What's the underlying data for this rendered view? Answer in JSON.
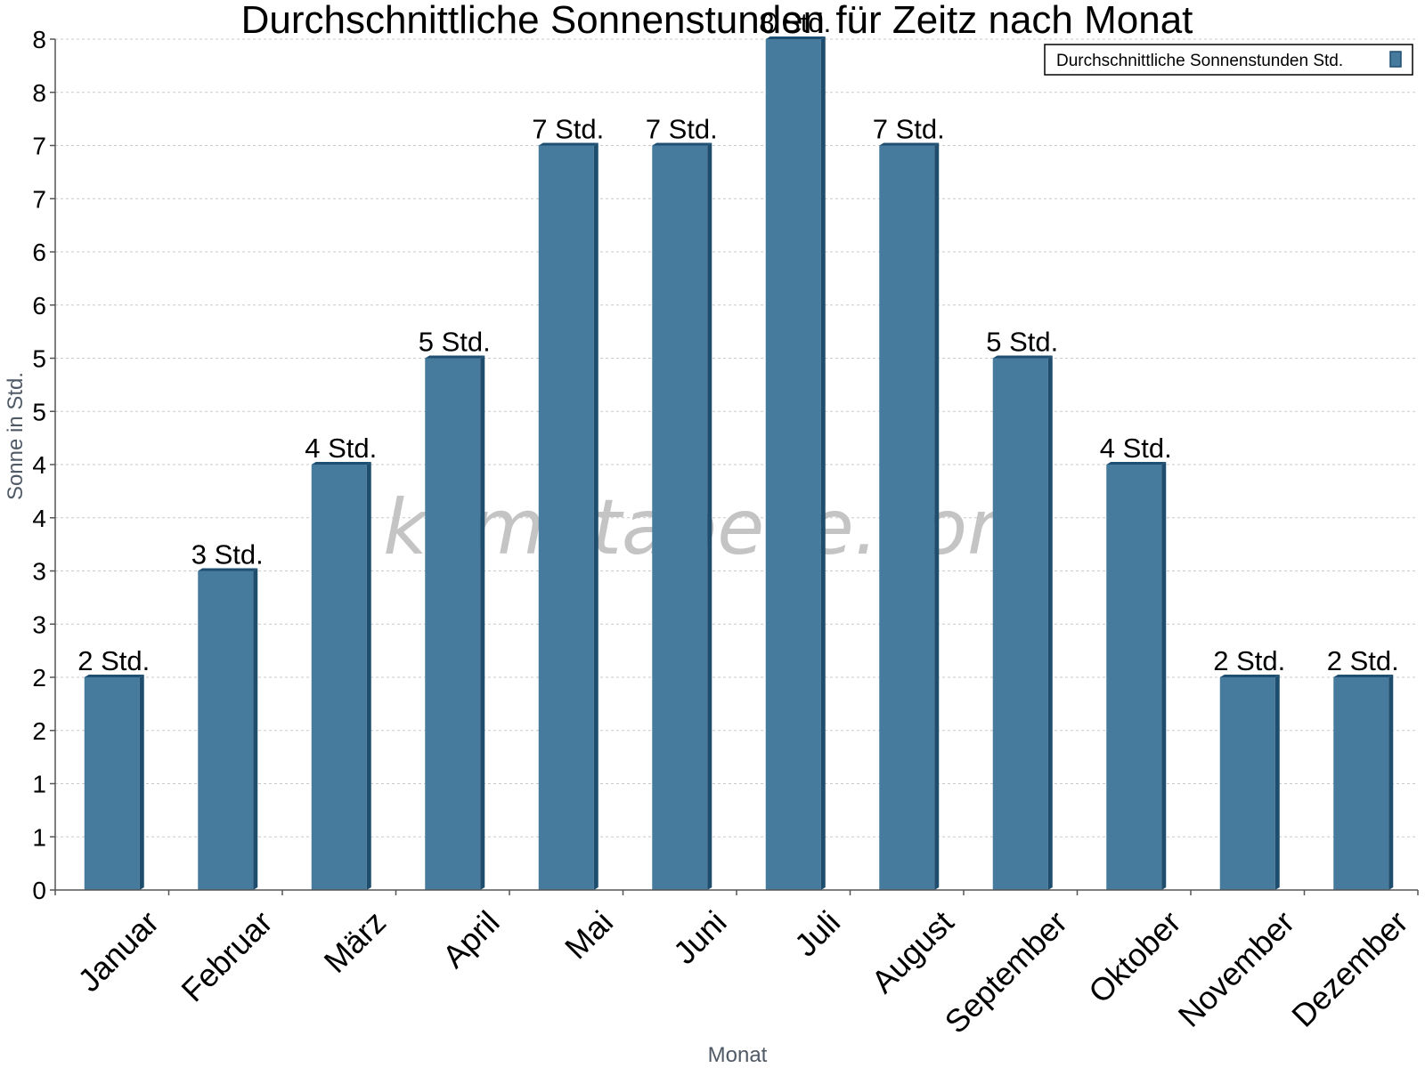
{
  "chart_data": {
    "type": "bar",
    "title": "Durchschnittliche Sonnenstunden für Zeitz nach Monat",
    "xlabel": "Monat",
    "ylabel": "Sonne in Std.",
    "categories": [
      "Januar",
      "Februar",
      "März",
      "April",
      "Mai",
      "Juni",
      "Juli",
      "August",
      "September",
      "Oktober",
      "November",
      "Dezember"
    ],
    "series": [
      {
        "name": "Durchschnittliche Sonnenstunden Std.",
        "values": [
          2,
          3,
          4,
          5,
          7,
          7,
          8,
          7,
          5,
          4,
          2,
          2
        ],
        "labels": [
          "2 Std.",
          "3 Std.",
          "4 Std.",
          "5 Std.",
          "7 Std.",
          "7 Std.",
          "8 Std.",
          "7 Std.",
          "5 Std.",
          "4 Std.",
          "2 Std.",
          "2 Std."
        ]
      }
    ],
    "ylim": [
      0,
      8
    ],
    "yticks": [
      0,
      0.5,
      1,
      1.5,
      2,
      2.5,
      3,
      3.5,
      4,
      4.5,
      5,
      5.5,
      6,
      6.5,
      7,
      7.5,
      8
    ],
    "ytick_labels": [
      "0",
      "1",
      "1",
      "2",
      "2",
      "3",
      "3",
      "4",
      "4",
      "5",
      "5",
      "6",
      "6",
      "7",
      "7",
      "8",
      "8"
    ],
    "grid": true,
    "legend_position": "top-right",
    "colors": {
      "bar": "#467b9d",
      "bar_side": "#1f4d6e",
      "bar_top": "#1e4f72",
      "grid": "#c8c8c8",
      "axis": "#555555"
    }
  },
  "watermark": "klimatabelle.com"
}
